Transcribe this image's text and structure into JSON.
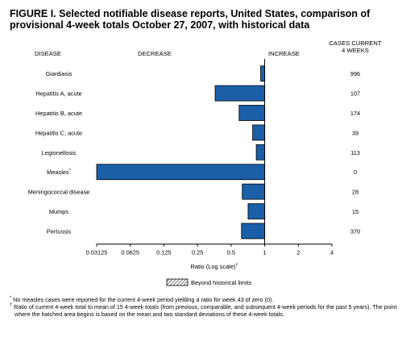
{
  "figure": {
    "title": "FIGURE I. Selected notifiable disease reports, United States, comparison of provisional 4-week totals October 27, 2007, with historical data"
  },
  "headers": {
    "disease": "DISEASE",
    "decrease": "DECREASE",
    "increase": "INCREASE",
    "cases_line1": "CASES CURRENT",
    "cases_line2": "4 WEEKS"
  },
  "legend": {
    "label": "Beyond historical limits"
  },
  "footnotes": {
    "measles_mark": "*",
    "measles": "No measles cases were reported for the current 4-week period yielding a ratio for week 43 of zero (0).",
    "ratio_mark": "†",
    "ratio": "Ratio of current 4-week total to mean of 15 4-week totals (from previous, comparable, and subsequent 4-week periods for the past 5 years). The point where the hatched area begins is based on the mean and two standard deviations of these 4-week totals."
  },
  "chart_data": {
    "type": "bar",
    "orientation": "horizontal",
    "xscale": "log2",
    "xlim": [
      0.03125,
      4
    ],
    "xticks": [
      "0.03125",
      "0.0625",
      "0.125",
      "0.25",
      "0.5",
      "1",
      "2",
      "4"
    ],
    "xlabel": "Ratio (Log scale)",
    "xlabel_mark": "†",
    "categories": [
      "Giardiasis",
      "Hepatitis A, acute",
      "Hepatitis B, acute",
      "Hepatitis C, acute",
      "Legionellosis",
      "Measles",
      "Meningococcal disease",
      "Mumps",
      "Pertussis"
    ],
    "category_marks": [
      "",
      "",
      "",
      "",
      "",
      "*",
      "",
      "",
      ""
    ],
    "ratios": [
      0.92,
      0.36,
      0.59,
      0.78,
      0.84,
      0.03125,
      0.63,
      0.71,
      0.62
    ],
    "cases_current_4_weeks": [
      "996",
      "107",
      "174",
      "39",
      "113",
      "0",
      "28",
      "15",
      "370"
    ],
    "bar_color": "#1a5fa8",
    "beyond_historical_limits": [
      false,
      false,
      false,
      false,
      false,
      false,
      false,
      false,
      false
    ]
  }
}
